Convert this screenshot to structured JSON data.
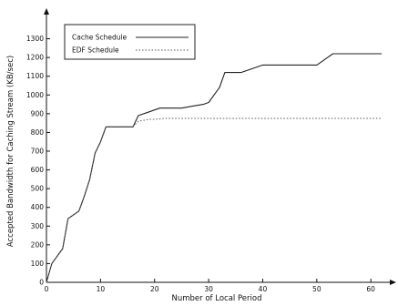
{
  "chart_data": {
    "type": "line",
    "title": "",
    "xlabel": "Number of Local Period",
    "ylabel": "Accepted Bandwidth for Caching Stream (KB/sec)",
    "xlim": [
      0,
      63
    ],
    "ylim": [
      0,
      1400
    ],
    "xticks": [
      0,
      10,
      20,
      30,
      40,
      50,
      60
    ],
    "yticks": [
      0,
      100,
      200,
      300,
      400,
      500,
      600,
      700,
      800,
      900,
      1000,
      1100,
      1200,
      1300
    ],
    "grid": false,
    "legend_position": "top-left",
    "series": [
      {
        "name": "Cache Schedule",
        "style": "solid",
        "color": "#222222",
        "x": [
          0,
          1,
          3,
          4,
          5,
          6,
          7,
          8,
          9,
          10,
          11,
          12,
          14,
          16,
          17,
          19,
          20,
          21,
          22,
          23,
          25,
          27,
          29,
          30,
          31,
          32,
          33,
          34,
          35,
          36,
          38,
          40,
          42,
          44,
          46,
          48,
          50,
          51,
          52,
          53,
          55,
          57,
          59,
          61,
          62
        ],
        "y": [
          0,
          100,
          180,
          340,
          360,
          380,
          460,
          550,
          690,
          750,
          830,
          830,
          830,
          830,
          890,
          910,
          920,
          930,
          930,
          930,
          930,
          940,
          950,
          960,
          1000,
          1040,
          1120,
          1120,
          1120,
          1120,
          1140,
          1160,
          1160,
          1160,
          1160,
          1160,
          1160,
          1180,
          1200,
          1220,
          1220,
          1220,
          1220,
          1220,
          1220
        ]
      },
      {
        "name": "EDF Schedule",
        "style": "dotted",
        "color": "#555555",
        "x": [
          0,
          1,
          3,
          4,
          5,
          6,
          7,
          8,
          9,
          10,
          11,
          12,
          14,
          16,
          17,
          19,
          20,
          22,
          25,
          30,
          35,
          40,
          45,
          50,
          55,
          60,
          62
        ],
        "y": [
          0,
          100,
          180,
          340,
          360,
          380,
          460,
          550,
          690,
          750,
          830,
          830,
          830,
          830,
          860,
          870,
          870,
          875,
          875,
          875,
          875,
          875,
          875,
          875,
          875,
          875,
          875
        ]
      }
    ]
  }
}
